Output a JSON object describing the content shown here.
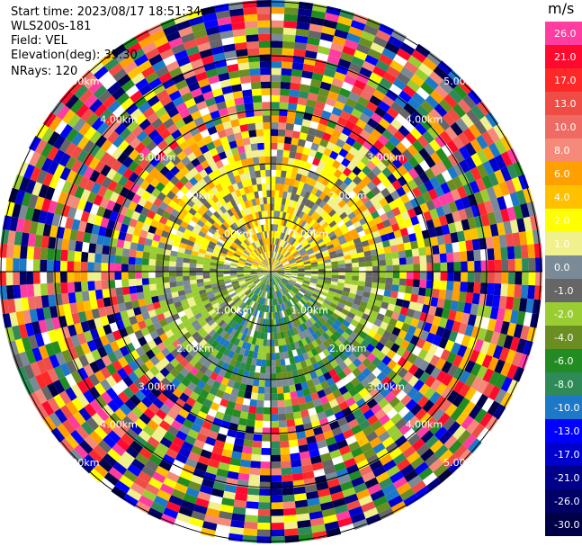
{
  "info": {
    "start_time": "Start time: 2023/08/17 18:51:34",
    "instrument": "WLS200s-181",
    "field": "Field: VEL",
    "elevation": "Elevation(deg): 35.30",
    "nrays": "NRays: 120"
  },
  "range_rings": {
    "labels": [
      "1.00km",
      "2.00km",
      "3.00km",
      "4.00km",
      "5.00km"
    ]
  },
  "colorbar": {
    "unit": "m/s",
    "ticks": [
      "26.0",
      "21.0",
      "17.0",
      "13.0",
      "10.0",
      "8.0",
      "6.0",
      "4.0",
      "2.0",
      "1.0",
      "0.0",
      "-1.0",
      "-2.0",
      "-4.0",
      "-6.0",
      "-8.0",
      "-10.0",
      "-13.0",
      "-17.0",
      "-21.0",
      "-26.0",
      "-30.0"
    ],
    "colors": [
      "#ff3ca0",
      "#ff0a2e",
      "#ff2828",
      "#f04c46",
      "#f06a64",
      "#f58a7a",
      "#ff9f00",
      "#ffc000",
      "#ffff00",
      "#f0f08c",
      "#7a8a96",
      "#666666",
      "#9acd32",
      "#6b8e23",
      "#228b22",
      "#2e8b57",
      "#1e78c8",
      "#0000ff",
      "#0000cd",
      "#00008b",
      "#000066",
      "#000046"
    ]
  },
  "ppi": {
    "field": "VEL",
    "nrays": 120,
    "range_km": 5.0
  }
}
